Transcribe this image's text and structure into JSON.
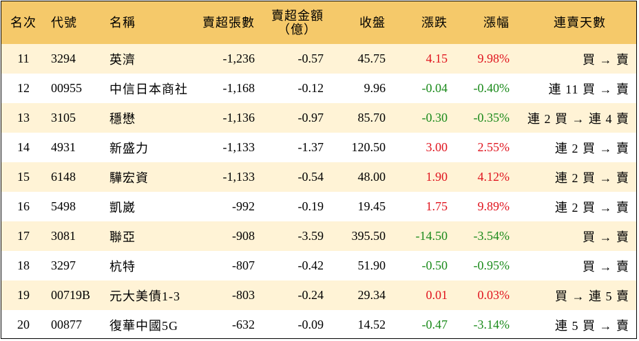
{
  "headers": {
    "rank": "名次",
    "code": "代號",
    "name": "名稱",
    "sell_lots": "賣超張數",
    "sell_amount_line1": "賣超金額",
    "sell_amount_line2": "（億）",
    "close": "收盤",
    "change": "漲跌",
    "change_pct": "漲幅",
    "streak": "連賣天數"
  },
  "colors": {
    "header_bg": "#f5c96a",
    "stripe_bg": "#fff3d6",
    "up": "#e0141e",
    "down": "#1a8a1a"
  },
  "rows": [
    {
      "rank": "11",
      "code": "3294",
      "name": "英濟",
      "sell_lots": "-1,236",
      "sell_amount": "-0.57",
      "close": "45.75",
      "change": "4.15",
      "change_pct": "9.98%",
      "direction": "up",
      "streak": "買 → 賣"
    },
    {
      "rank": "12",
      "code": "00955",
      "name": "中信日本商社",
      "sell_lots": "-1,168",
      "sell_amount": "-0.12",
      "close": "9.96",
      "change": "-0.04",
      "change_pct": "-0.40%",
      "direction": "down",
      "streak": "連 11 買 → 賣"
    },
    {
      "rank": "13",
      "code": "3105",
      "name": "穩懋",
      "sell_lots": "-1,136",
      "sell_amount": "-0.97",
      "close": "85.70",
      "change": "-0.30",
      "change_pct": "-0.35%",
      "direction": "down",
      "streak": "連 2 買 → 連 4 賣"
    },
    {
      "rank": "14",
      "code": "4931",
      "name": "新盛力",
      "sell_lots": "-1,133",
      "sell_amount": "-1.37",
      "close": "120.50",
      "change": "3.00",
      "change_pct": "2.55%",
      "direction": "up",
      "streak": "連 2 買 → 賣"
    },
    {
      "rank": "15",
      "code": "6148",
      "name": "驊宏資",
      "sell_lots": "-1,133",
      "sell_amount": "-0.54",
      "close": "48.00",
      "change": "1.90",
      "change_pct": "4.12%",
      "direction": "up",
      "streak": "連 2 買 → 賣"
    },
    {
      "rank": "16",
      "code": "5498",
      "name": "凱崴",
      "sell_lots": "-992",
      "sell_amount": "-0.19",
      "close": "19.45",
      "change": "1.75",
      "change_pct": "9.89%",
      "direction": "up",
      "streak": "連 2 買 → 賣"
    },
    {
      "rank": "17",
      "code": "3081",
      "name": "聯亞",
      "sell_lots": "-908",
      "sell_amount": "-3.59",
      "close": "395.50",
      "change": "-14.50",
      "change_pct": "-3.54%",
      "direction": "down",
      "streak": "買 → 賣"
    },
    {
      "rank": "18",
      "code": "3297",
      "name": "杭特",
      "sell_lots": "-807",
      "sell_amount": "-0.42",
      "close": "51.90",
      "change": "-0.50",
      "change_pct": "-0.95%",
      "direction": "down",
      "streak": "買 → 賣"
    },
    {
      "rank": "19",
      "code": "00719B",
      "name": "元大美債1-3",
      "sell_lots": "-803",
      "sell_amount": "-0.24",
      "close": "29.34",
      "change": "0.01",
      "change_pct": "0.03%",
      "direction": "up",
      "streak": "買 → 連 5 賣"
    },
    {
      "rank": "20",
      "code": "00877",
      "name": "復華中國5G",
      "sell_lots": "-632",
      "sell_amount": "-0.09",
      "close": "14.52",
      "change": "-0.47",
      "change_pct": "-3.14%",
      "direction": "down",
      "streak": "連 5 買 → 賣"
    }
  ]
}
